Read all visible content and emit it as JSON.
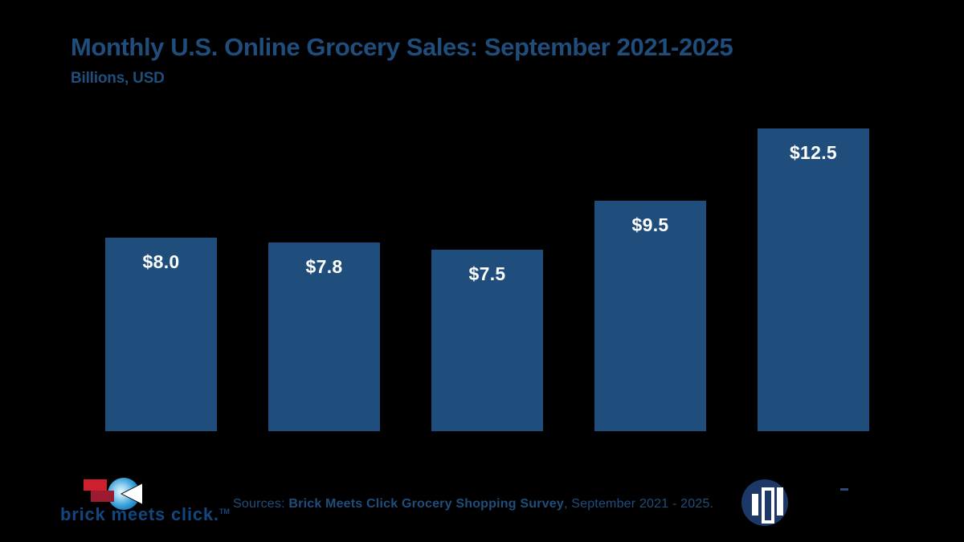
{
  "colors": {
    "background": "#000000",
    "bar_fill": "#1F4E7C",
    "title_text": "#1F4E7C",
    "bar_label_text": "#FFFFFF",
    "bmc_wordmark": "#11477E",
    "bmc_red_bright": "#CE1F2F",
    "bmc_red_dark": "#9C1B31",
    "bmc_sphere_blue": "#1B7FC4",
    "mercatus_navy": "#1C3866"
  },
  "header": {
    "title": "Monthly U.S. Online Grocery Sales: September 2021-2025",
    "subtitle": "Billions, USD"
  },
  "chart_data": {
    "type": "bar",
    "title": "Monthly U.S. Online Grocery Sales: September 2021-2025",
    "units_label": "Billions, USD",
    "series": [
      {
        "name": "Monthly U.S. online grocery sales (billions USD)",
        "values": [
          8.0,
          7.8,
          7.5,
          9.5,
          12.5
        ]
      }
    ],
    "data_labels": [
      "$8.0",
      "$7.8",
      "$7.5",
      "$9.5",
      "$12.5"
    ],
    "x_axis_tick_labels_visible": false,
    "y_axis_visible": false,
    "grid": false,
    "legend": false,
    "ylim": [
      0,
      13.2
    ],
    "bar_color": "#1F4E7C",
    "label_color": "#FFFFFF",
    "label_position": "inside-top"
  },
  "footer": {
    "bmc": {
      "wordmark": "brick meets click.",
      "trademark": "TM"
    },
    "source": {
      "prefix": "Sources: ",
      "bold": "Brick Meets Click Grocery Shopping Survey",
      "suffix": ", September 2021 - 2025."
    },
    "mercatus": {
      "icon": "mercatus-circle-bars-logo"
    }
  }
}
